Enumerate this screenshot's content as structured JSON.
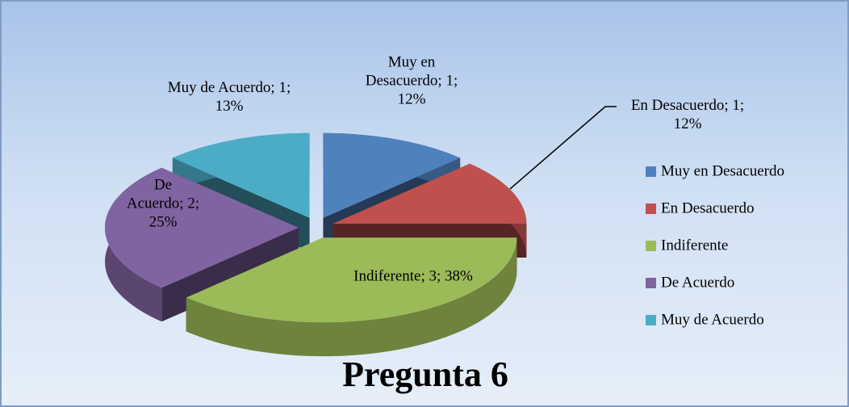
{
  "chart_data": {
    "type": "pie",
    "title": "Pregunta 6",
    "categories": [
      "Muy en Desacuerdo",
      "En Desacuerdo",
      "Indiferente",
      "De Acuerdo",
      "Muy de Acuerdo"
    ],
    "values": [
      1,
      1,
      3,
      2,
      1
    ],
    "value_labels": [
      "Muy en Desacuerdo; 1; 12%",
      "En Desacuerdo; 1; 12%",
      "Indiferente; 3; 38%",
      "De Acuerdo; 2; 25%",
      "Muy de Acuerdo; 1; 13%"
    ],
    "colors": [
      "#4f81bd",
      "#c0504d",
      "#9bbb59",
      "#8064a2",
      "#4bacc6"
    ],
    "legend": "right"
  }
}
